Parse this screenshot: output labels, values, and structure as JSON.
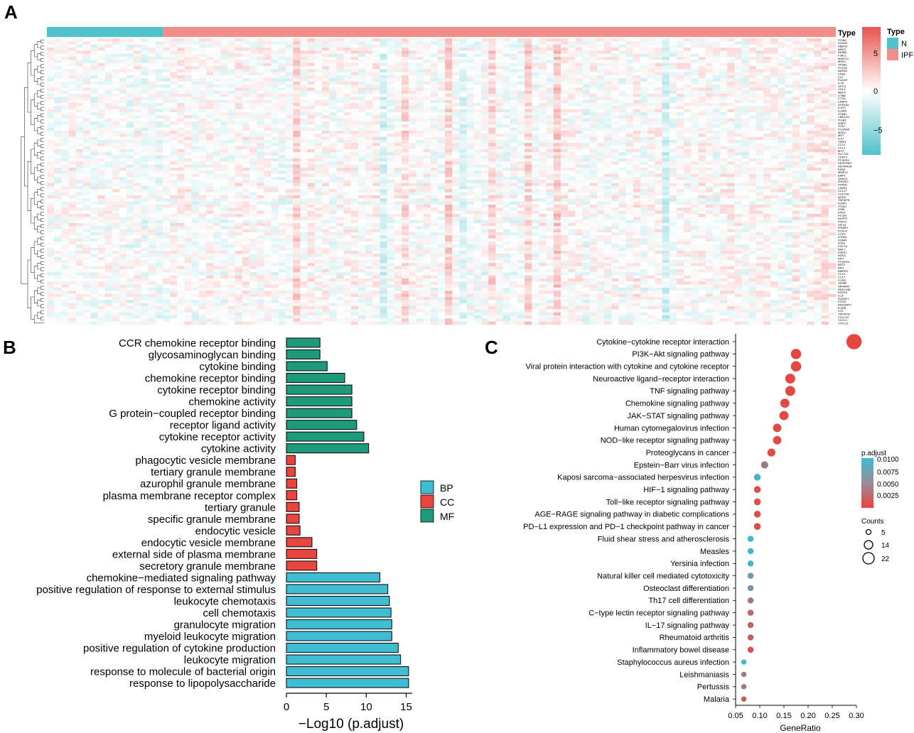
{
  "chart_data": [
    {
      "panel": "A",
      "type": "heatmap",
      "annotation_title": "Type",
      "legend_type_title": "Type",
      "groups": [
        {
          "name": "N",
          "color": "#4fc3c9",
          "samples": 16
        },
        {
          "name": "IPF",
          "color": "#f28e8a",
          "samples": 93
        }
      ],
      "color_scale": {
        "min": -9,
        "max": 9,
        "ticks": [
          "5",
          "0",
          "−5"
        ],
        "low": "#4fc3c9",
        "mid": "#ffffff",
        "high": "#e8534e"
      },
      "genes": [
        "ITGB6",
        "KCNA3",
        "HBEGF",
        "AREG",
        "INHBA",
        "F2RL1",
        "MARCO",
        "MSR1",
        "TPSB2",
        "PTGS2",
        "ADRA1",
        "CD83",
        "LYZ",
        "PLAUR",
        "IL7R",
        "GPC3",
        "CD14",
        "MEFV",
        "CYBB",
        "CTSS",
        "LAMP3",
        "GPR183",
        "IL1R2",
        "IL18R1",
        "STAB1",
        "CMKLR1",
        "ITGB3",
        "AQP9",
        "TLR2",
        "FCGR3A",
        "MXD1",
        "MET",
        "IL10",
        "TIMP1",
        "CCL2",
        "CCL3",
        "MYC",
        "SLC7A1",
        "CHST2",
        "PTGER2",
        "SERPINE1",
        "ADORA2B",
        "EDN1",
        "MMP14",
        "EMP1",
        "GNA15",
        "IFNGR2",
        "PTAFR",
        "C3AR1",
        "CCL17",
        "CLEC5A",
        "NOD2",
        "TNFAIP6",
        "ICAM1",
        "ITGA2",
        "OSM",
        "FPR1",
        "PTGIR",
        "NLRP3",
        "P2RY2",
        "HIF1A",
        "IFNAR1",
        "KCNJ2",
        "CCR7",
        "ICAM4",
        "OSMR",
        "RTP4",
        "CXCL8",
        "RAF1",
        "P2RX7",
        "NOD1",
        "IRF7",
        "PTGER4",
        "BST2",
        "IRF1",
        "NMUR1",
        "CCL5",
        "CCL7",
        "CCR5",
        "TAPBP",
        "SEMA4D",
        "RNF144B",
        "RGS16",
        "IL15",
        "SLAMF1",
        "ISG20",
        "RASGRP1",
        "IL2RB",
        "LCK",
        "TNFSF10",
        "CXCL10",
        "CXCL9",
        "CXCL11"
      ]
    },
    {
      "panel": "B",
      "type": "bar",
      "orientation": "horizontal",
      "xlabel": "−Log10 (p.adjust)",
      "xlim": [
        0,
        16
      ],
      "xticks": [
        0,
        5,
        10,
        15
      ],
      "legend": [
        {
          "name": "BP",
          "color": "#40bcd3"
        },
        {
          "name": "CC",
          "color": "#e8453e"
        },
        {
          "name": "MF",
          "color": "#1e9a7d"
        }
      ],
      "categories": [
        {
          "term": "CCR chemokine receptor binding",
          "value": 4.2,
          "group": "MF"
        },
        {
          "term": "glycosaminoglycan binding",
          "value": 4.2,
          "group": "MF"
        },
        {
          "term": "cytokine binding",
          "value": 5.1,
          "group": "MF"
        },
        {
          "term": "chemokine receptor binding",
          "value": 7.3,
          "group": "MF"
        },
        {
          "term": "cytokine receptor binding",
          "value": 8.2,
          "group": "MF"
        },
        {
          "term": "chemokine activity",
          "value": 8.2,
          "group": "MF"
        },
        {
          "term": "G protein−coupled receptor binding",
          "value": 8.2,
          "group": "MF"
        },
        {
          "term": "receptor ligand activity",
          "value": 8.8,
          "group": "MF"
        },
        {
          "term": "cytokine receptor activity",
          "value": 9.7,
          "group": "MF"
        },
        {
          "term": "cytokine activity",
          "value": 10.3,
          "group": "MF"
        },
        {
          "term": "phagocytic vesicle membrane",
          "value": 1.1,
          "group": "CC"
        },
        {
          "term": "tertiary granule membrane",
          "value": 1.1,
          "group": "CC"
        },
        {
          "term": "azurophil granule membrane",
          "value": 1.3,
          "group": "CC"
        },
        {
          "term": "plasma membrane receptor complex",
          "value": 1.3,
          "group": "CC"
        },
        {
          "term": "tertiary granule",
          "value": 1.6,
          "group": "CC"
        },
        {
          "term": "specific granule membrane",
          "value": 1.6,
          "group": "CC"
        },
        {
          "term": "endocytic vesicle",
          "value": 1.7,
          "group": "CC"
        },
        {
          "term": "endocytic vesicle membrane",
          "value": 3.2,
          "group": "CC"
        },
        {
          "term": "external side of plasma membrane",
          "value": 3.8,
          "group": "CC"
        },
        {
          "term": "secretory granule membrane",
          "value": 3.8,
          "group": "CC"
        },
        {
          "term": "chemokine−mediated signaling pathway",
          "value": 11.7,
          "group": "BP"
        },
        {
          "term": "positive regulation of response to external stimulus",
          "value": 12.7,
          "group": "BP"
        },
        {
          "term": "leukocyte chemotaxis",
          "value": 12.9,
          "group": "BP"
        },
        {
          "term": "cell chemotaxis",
          "value": 13.1,
          "group": "BP"
        },
        {
          "term": "granulocyte migration",
          "value": 13.2,
          "group": "BP"
        },
        {
          "term": "myeloid leukocyte migration",
          "value": 13.2,
          "group": "BP"
        },
        {
          "term": "positive regulation of cytokine production",
          "value": 14.0,
          "group": "BP"
        },
        {
          "term": "leukocyte migration",
          "value": 14.3,
          "group": "BP"
        },
        {
          "term": "response to molecule of bacterial origin",
          "value": 15.3,
          "group": "BP"
        },
        {
          "term": "response to lipopolysaccharide",
          "value": 15.3,
          "group": "BP"
        }
      ]
    },
    {
      "panel": "C",
      "type": "scatter",
      "subtype": "dotplot",
      "xlabel": "GeneRatio",
      "xlim": [
        0.05,
        0.3
      ],
      "xticks": [
        "0.05",
        "0.10",
        "0.15",
        "0.20",
        "0.25",
        "0.30"
      ],
      "color_legend": {
        "title": "p.adjust",
        "ticks": [
          "0.0100",
          "0.0075",
          "0.0050",
          "0.0025"
        ],
        "min": 0,
        "max": 0.0105,
        "low_color": "#e8453e",
        "high_color": "#40bcd3"
      },
      "size_legend": {
        "title": "Counts",
        "values": [
          5,
          14,
          22
        ]
      },
      "points": [
        {
          "term": "Cytokine−cytokine receptor interaction",
          "x": 0.295,
          "count": 33,
          "padj": 0.0001
        },
        {
          "term": "PI3K−Akt signaling pathway",
          "x": 0.175,
          "count": 20,
          "padj": 0.0002
        },
        {
          "term": "Viral protein interaction with cytokine and cytokine receptor",
          "x": 0.175,
          "count": 20,
          "padj": 0.0002
        },
        {
          "term": "Neuroactive ligand−receptor interaction",
          "x": 0.163,
          "count": 19,
          "padj": 0.0003
        },
        {
          "term": "TNF signaling pathway",
          "x": 0.163,
          "count": 19,
          "padj": 0.0003
        },
        {
          "term": "Chemokine signaling pathway",
          "x": 0.152,
          "count": 17,
          "padj": 0.0004
        },
        {
          "term": "JAK−STAT signaling pathway",
          "x": 0.15,
          "count": 17,
          "padj": 0.0004
        },
        {
          "term": "Human cytomegalovirus infection",
          "x": 0.136,
          "count": 15,
          "padj": 0.0006
        },
        {
          "term": "NOD−like receptor signaling pathway",
          "x": 0.136,
          "count": 15,
          "padj": 0.0006
        },
        {
          "term": "Proteoglycans in cancer",
          "x": 0.124,
          "count": 14,
          "padj": 0.0008
        },
        {
          "term": "Epstein−Barr virus infection",
          "x": 0.11,
          "count": 12,
          "padj": 0.0045
        },
        {
          "term": "Kaposi sarcoma−associated herpesvirus infection",
          "x": 0.095,
          "count": 11,
          "padj": 0.0098
        },
        {
          "term": "HIF−1 signaling pathway",
          "x": 0.095,
          "count": 11,
          "padj": 0.0008
        },
        {
          "term": "Toll−like receptor signaling pathway",
          "x": 0.095,
          "count": 11,
          "padj": 0.0008
        },
        {
          "term": "AGE−RAGE signaling pathway in diabetic complications",
          "x": 0.095,
          "count": 11,
          "padj": 0.0008
        },
        {
          "term": "PD−L1 expression and PD−1 checkpoint pathway in cancer",
          "x": 0.095,
          "count": 11,
          "padj": 0.0008
        },
        {
          "term": "Fluid shear stress and atherosclerosis",
          "x": 0.081,
          "count": 9,
          "padj": 0.01
        },
        {
          "term": "Measles",
          "x": 0.081,
          "count": 9,
          "padj": 0.01
        },
        {
          "term": "Yersinia infection",
          "x": 0.081,
          "count": 9,
          "padj": 0.0095
        },
        {
          "term": "Natural killer cell mediated cytotoxicity",
          "x": 0.081,
          "count": 9,
          "padj": 0.0078
        },
        {
          "term": "Osteoclast differentiation",
          "x": 0.081,
          "count": 9,
          "padj": 0.007
        },
        {
          "term": "Th17 cell differentiation",
          "x": 0.081,
          "count": 9,
          "padj": 0.004
        },
        {
          "term": "C−type lectin receptor signaling pathway",
          "x": 0.081,
          "count": 9,
          "padj": 0.0035
        },
        {
          "term": "IL−17 signaling pathway",
          "x": 0.081,
          "count": 9,
          "padj": 0.003
        },
        {
          "term": "Rheumatoid arthritis",
          "x": 0.081,
          "count": 9,
          "padj": 0.0025
        },
        {
          "term": "Inflammatory bowel disease",
          "x": 0.081,
          "count": 9,
          "padj": 0.0008
        },
        {
          "term": "Staphylococcus aureus infection",
          "x": 0.067,
          "count": 7,
          "padj": 0.01
        },
        {
          "term": "Leishmaniasis",
          "x": 0.067,
          "count": 7,
          "padj": 0.005
        },
        {
          "term": "Pertussis",
          "x": 0.067,
          "count": 7,
          "padj": 0.0048
        },
        {
          "term": "Malaria",
          "x": 0.067,
          "count": 7,
          "padj": 0.002
        }
      ]
    }
  ],
  "panel_labels": [
    "A",
    "B",
    "C"
  ]
}
